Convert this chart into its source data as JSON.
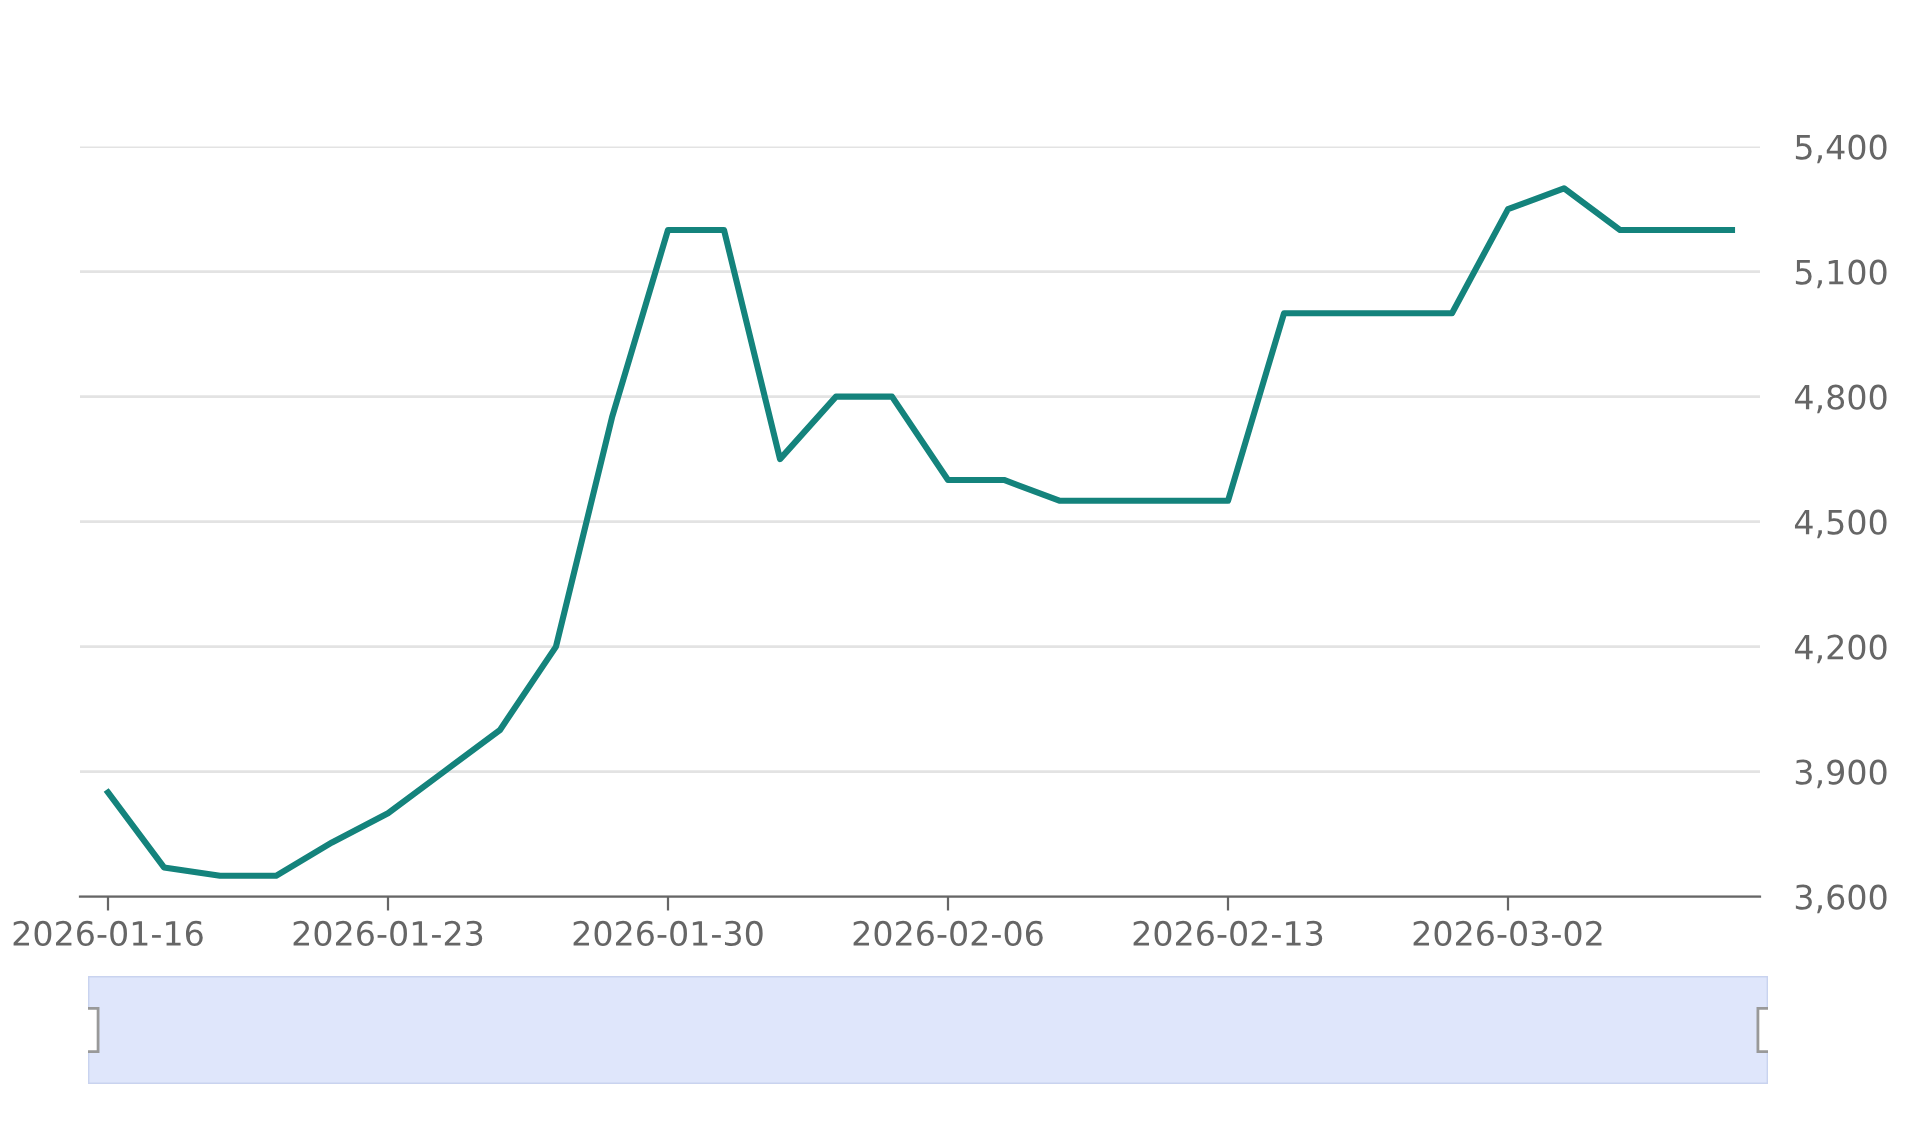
{
  "chart_data": {
    "type": "line",
    "categories": [
      "2026-01-16",
      null,
      null,
      null,
      null,
      "2026-01-23",
      null,
      null,
      null,
      null,
      "2026-01-30",
      null,
      null,
      null,
      null,
      "2026-02-06",
      null,
      null,
      null,
      null,
      "2026-02-13",
      null,
      null,
      null,
      null,
      "2026-03-02",
      null,
      null,
      null,
      null
    ],
    "series": [
      {
        "color": "#14837c",
        "values": [
          3850,
          3670,
          3650,
          3650,
          3730,
          3800,
          3900,
          4000,
          4200,
          4750,
          5200,
          5200,
          4650,
          4800,
          4800,
          4600,
          4600,
          4550,
          4550,
          4550,
          4550,
          5000,
          5000,
          5000,
          5000,
          5250,
          5300,
          5200,
          5200,
          5200
        ]
      }
    ],
    "ylim": [
      3600,
      5400
    ],
    "yticks": [
      {
        "value": 3600,
        "label": "3,600"
      },
      {
        "value": 3900,
        "label": "3,900"
      },
      {
        "value": 4200,
        "label": "4,200"
      },
      {
        "value": 4500,
        "label": "4,500"
      },
      {
        "value": 4800,
        "label": "4,800"
      },
      {
        "value": 5100,
        "label": "5,100"
      },
      {
        "value": 5400,
        "label": "5,400"
      }
    ],
    "grid": "y",
    "marker": "none",
    "line_style": "solid",
    "legend": false
  }
}
